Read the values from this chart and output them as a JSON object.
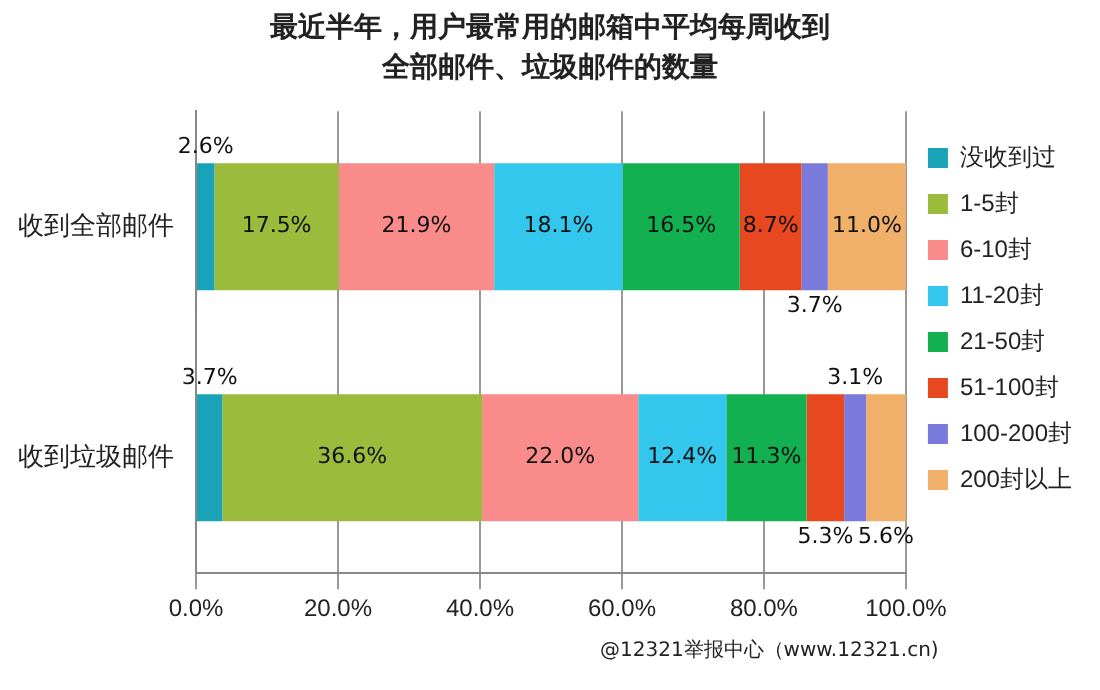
{
  "chart_data": {
    "type": "bar",
    "orientation": "horizontal",
    "stacked": true,
    "title": "最近半年，用户最常用的邮箱中平均每周收到全部邮件、垃圾邮件的数量",
    "categories": [
      "收到全部邮件",
      "收到垃圾邮件"
    ],
    "series": [
      {
        "name": "没收到过",
        "color": "#1aa3b8",
        "values": [
          2.6,
          3.7
        ],
        "value_labels": [
          "2.6%",
          "3.7%"
        ]
      },
      {
        "name": "1-5封",
        "color": "#9bbb3c",
        "values": [
          17.5,
          36.6
        ],
        "value_labels": [
          "17.5%",
          "36.6%"
        ]
      },
      {
        "name": "6-10封",
        "color": "#f98b8b",
        "values": [
          21.9,
          22.0
        ],
        "value_labels": [
          "21.9%",
          "22.0%"
        ]
      },
      {
        "name": "11-20封",
        "color": "#33c7ee",
        "values": [
          18.1,
          12.4
        ],
        "value_labels": [
          "18.1%",
          "12.4%"
        ]
      },
      {
        "name": "21-50封",
        "color": "#12b050",
        "values": [
          16.5,
          11.3
        ],
        "value_labels": [
          "16.5%",
          "11.3%"
        ]
      },
      {
        "name": "51-100封",
        "color": "#e8481f",
        "values": [
          8.7,
          5.3
        ],
        "value_labels": [
          "8.7%",
          "5.3%"
        ]
      },
      {
        "name": "100-200封",
        "color": "#7a7adc",
        "values": [
          3.7,
          3.1
        ],
        "value_labels": [
          "3.7%",
          "3.1%"
        ]
      },
      {
        "name": "200封以上",
        "color": "#f0b06a",
        "values": [
          11.0,
          5.6
        ],
        "value_labels": [
          "11.0%",
          "5.6%"
        ]
      }
    ],
    "xlim": [
      0,
      100
    ],
    "xticks": [
      {
        "value": 0,
        "label": "0.0%"
      },
      {
        "value": 20,
        "label": "20.0%"
      },
      {
        "value": 40,
        "label": "40.0%"
      },
      {
        "value": 60,
        "label": "60.0%"
      },
      {
        "value": 80,
        "label": "80.0%"
      },
      {
        "value": 100,
        "label": "100.0%"
      }
    ],
    "grid": "x",
    "legend": "right",
    "annotations": [
      "@12321举报中心（www.12321.cn)"
    ]
  }
}
